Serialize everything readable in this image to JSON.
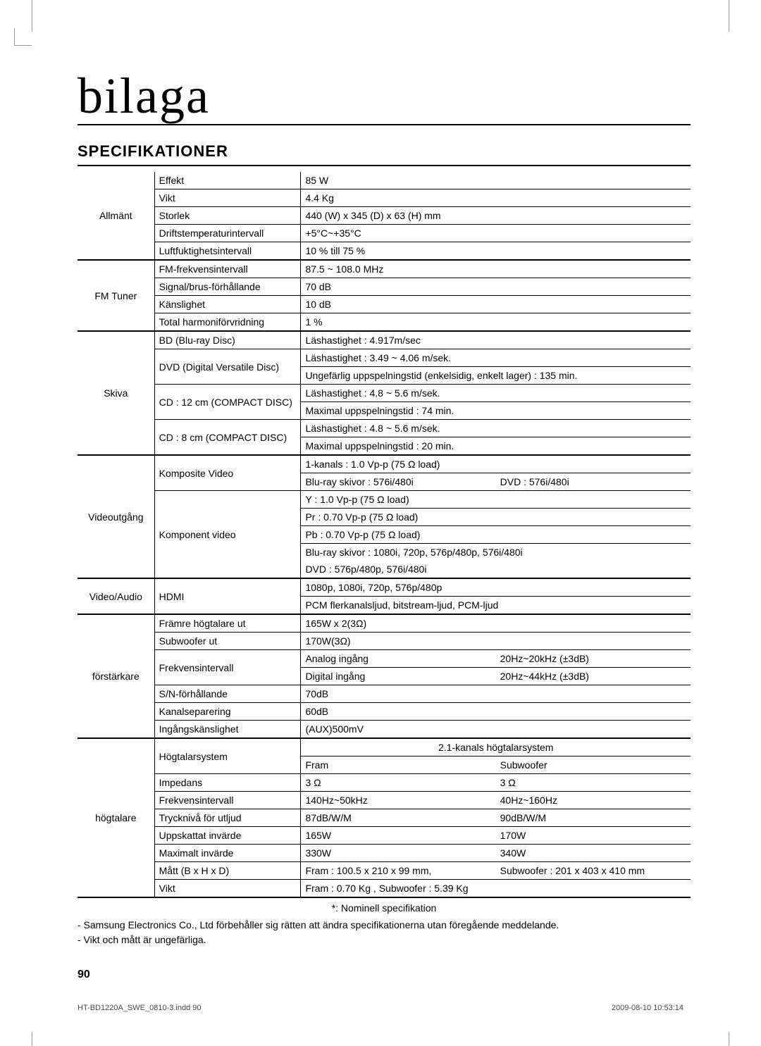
{
  "title": "bilaga",
  "section": "SPECIFIKATIONER",
  "groups": [
    {
      "cat": "Allmänt",
      "tall": true,
      "thick": true,
      "rows": [
        {
          "lab": "Effekt",
          "val": [
            "85 W"
          ]
        },
        {
          "lab": "Vikt",
          "val": [
            "4.4 Kg"
          ]
        },
        {
          "lab": "Storlek",
          "val": [
            "440 (W) x 345 (D) x 63 (H) mm"
          ]
        },
        {
          "lab": "Driftstemperaturintervall",
          "val": [
            "+5°C~+35°C"
          ]
        },
        {
          "lab": "Luftfuktighetsintervall",
          "val": [
            "10 % till 75 %"
          ]
        }
      ]
    },
    {
      "cat": "FM Tuner",
      "thick": true,
      "rows": [
        {
          "lab": "FM-frekvensintervall",
          "val": [
            "87.5 ~ 108.0 MHz"
          ]
        },
        {
          "lab": "Signal/brus-förhållande",
          "val": [
            "70 dB"
          ]
        },
        {
          "lab": "Känslighet",
          "val": [
            "10 dB"
          ]
        },
        {
          "lab": "Total harmoniförvridning",
          "val": [
            "1 %"
          ]
        }
      ]
    },
    {
      "cat": "Skiva",
      "thick": true,
      "rows": [
        {
          "lab": "BD (Blu-ray Disc)",
          "val": [
            "Läshastighet : 4.917m/sec"
          ]
        },
        {
          "lab": "DVD (Digital Versatile Disc)",
          "labrs": 2,
          "val": [
            "Läshastighet : 3.49 ~ 4.06 m/sek."
          ]
        },
        {
          "val": [
            "Ungefärlig uppspelningstid (enkelsidig, enkelt lager) : 135 min."
          ]
        },
        {
          "lab": "CD : 12 cm (COMPACT DISC)",
          "labrs": 2,
          "val": [
            "Läshastighet : 4.8 ~ 5.6 m/sek."
          ]
        },
        {
          "val": [
            "Maximal uppspelningstid : 74 min."
          ]
        },
        {
          "lab": "CD : 8 cm (COMPACT DISC)",
          "labrs": 2,
          "val": [
            "Läshastighet : 4.8 ~ 5.6 m/sek."
          ]
        },
        {
          "val": [
            "Maximal uppspelningstid : 20 min."
          ]
        }
      ]
    },
    {
      "cat": "Videoutgång",
      "thick": true,
      "rows": [
        {
          "lab": "Komposite Video",
          "labrs": 2,
          "val": [
            "1-kanals : 1.0 Vp-p (75 Ω load)"
          ]
        },
        {
          "val": [
            "Blu-ray skivor : 576i/480i",
            "DVD : 576i/480i"
          ]
        },
        {
          "lab": "Komponent video",
          "labrs": 5,
          "val": [
            "Y : 1.0 Vp-p (75 Ω load)"
          ]
        },
        {
          "val": [
            "Pr : 0.70 Vp-p (75 Ω load)"
          ]
        },
        {
          "val": [
            "Pb : 0.70 Vp-p (75 Ω load)"
          ]
        },
        {
          "val": [
            "Blu-ray skivor : 1080i, 720p, 576p/480p, 576i/480i"
          ],
          "nob": true
        },
        {
          "val": [
            "DVD : 576p/480p, 576i/480i"
          ]
        }
      ]
    },
    {
      "cat": "Video/Audio",
      "thick": true,
      "rows": [
        {
          "lab": "HDMI",
          "labrs": 2,
          "val": [
            "1080p, 1080i, 720p, 576p/480p"
          ]
        },
        {
          "val": [
            "PCM flerkanalsljud, bitstream-ljud, PCM-ljud"
          ]
        }
      ]
    },
    {
      "cat": "förstärkare",
      "tall": true,
      "thick": true,
      "rows": [
        {
          "lab": "Främre högtalare ut",
          "val": [
            "165W x 2(3Ω)"
          ]
        },
        {
          "lab": "Subwoofer ut",
          "val": [
            "170W(3Ω)"
          ]
        },
        {
          "lab": "Frekvensintervall",
          "labrs": 2,
          "val": [
            "Analog ingång",
            "20Hz~20kHz (±3dB)"
          ],
          "tight": true
        },
        {
          "val": [
            "Digital ingång",
            "20Hz~44kHz (±3dB)"
          ],
          "tight": true
        },
        {
          "lab": "S/N-förhållande",
          "val": [
            "70dB"
          ]
        },
        {
          "lab": "Kanalseparering",
          "val": [
            "60dB"
          ]
        },
        {
          "lab": "Ingångskänslighet",
          "val": [
            "(AUX)500mV"
          ]
        }
      ]
    },
    {
      "cat": "högtalare",
      "thick": true,
      "rows": [
        {
          "lab": "Högtalarsystem",
          "labrs": 2,
          "val": [
            "2.1-kanals högtalarsystem"
          ],
          "center": true
        },
        {
          "val": [
            "Fram",
            "Subwoofer"
          ]
        },
        {
          "lab": "Impedans",
          "val": [
            "3 Ω",
            "3 Ω"
          ]
        },
        {
          "lab": "Frekvensintervall",
          "val": [
            "140Hz~50kHz",
            "40Hz~160Hz"
          ]
        },
        {
          "lab": "Trycknivå för utljud",
          "val": [
            "87dB/W/M",
            "90dB/W/M"
          ]
        },
        {
          "lab": "Uppskattat invärde",
          "val": [
            "165W",
            "170W"
          ]
        },
        {
          "lab": "Maximalt invärde",
          "val": [
            "330W",
            "340W"
          ]
        },
        {
          "lab": "Mått (B x H x D)",
          "val": [
            "Fram : 100.5 x 210 x 99 mm,",
            "Subwoofer : 201 x 403 x 410 mm"
          ]
        },
        {
          "lab": "Vikt",
          "val": [
            "Fram : 0.70 Kg ,  Subwoofer : 5.39 Kg"
          ]
        }
      ]
    }
  ],
  "nominal": "*: Nominell specifikation",
  "notes": [
    "- Samsung Electronics Co., Ltd förbehåller sig rätten att ändra specifikationerna utan föregående meddelande.",
    "- Vikt och mått är ungefärliga."
  ],
  "pagenum": "90",
  "footer_left": "HT-BD1220A_SWE_0810-3.indd   90",
  "footer_right": "2009-08-10    10:53:14"
}
